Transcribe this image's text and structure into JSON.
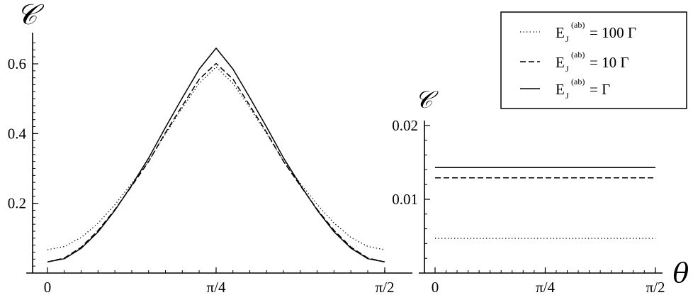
{
  "chart_data": [
    {
      "type": "line",
      "panel": "left",
      "ylabel": "𝒞",
      "xlabel": "",
      "xlim": [
        0,
        1.5708
      ],
      "ylim": [
        0,
        0.66
      ],
      "x_ticks": [
        {
          "value": 0,
          "label": "0"
        },
        {
          "value": 0.7854,
          "label": "π/4"
        },
        {
          "value": 1.5708,
          "label": "π/2"
        }
      ],
      "y_ticks": [
        {
          "value": 0.2,
          "label": "0.2"
        },
        {
          "value": 0.4,
          "label": "0.4"
        },
        {
          "value": 0.6,
          "label": "0.6"
        }
      ],
      "series": [
        {
          "name": "100",
          "style": "dotted",
          "x": [
            0,
            0.0785,
            0.1571,
            0.2356,
            0.3142,
            0.3927,
            0.4712,
            0.5498,
            0.6283,
            0.7069,
            0.7854,
            0.8639,
            0.9425,
            1.021,
            1.0996,
            1.1781,
            1.2566,
            1.3352,
            1.4137,
            1.4923,
            1.5708
          ],
          "y": [
            0.067,
            0.076,
            0.102,
            0.143,
            0.196,
            0.257,
            0.321,
            0.399,
            0.474,
            0.544,
            0.591,
            0.544,
            0.474,
            0.399,
            0.321,
            0.257,
            0.196,
            0.143,
            0.102,
            0.076,
            0.067
          ]
        },
        {
          "name": "10",
          "style": "dashed",
          "x": [
            0,
            0.0785,
            0.1571,
            0.2356,
            0.3142,
            0.3927,
            0.4712,
            0.5498,
            0.6283,
            0.7069,
            0.7854,
            0.8639,
            0.9425,
            1.021,
            1.0996,
            1.1781,
            1.2566,
            1.3352,
            1.4137,
            1.4923,
            1.5708
          ],
          "y": [
            0.032,
            0.043,
            0.074,
            0.122,
            0.182,
            0.25,
            0.32,
            0.403,
            0.48,
            0.556,
            0.601,
            0.556,
            0.48,
            0.403,
            0.32,
            0.25,
            0.182,
            0.122,
            0.074,
            0.043,
            0.032
          ]
        },
        {
          "name": "Γ",
          "style": "solid",
          "x": [
            0,
            0.0785,
            0.1571,
            0.2356,
            0.3142,
            0.3927,
            0.4712,
            0.5498,
            0.6283,
            0.7069,
            0.7854,
            0.8639,
            0.9425,
            1.021,
            1.0996,
            1.1781,
            1.2566,
            1.3352,
            1.4137,
            1.4923,
            1.5708
          ],
          "y": [
            0.032,
            0.041,
            0.071,
            0.118,
            0.18,
            0.252,
            0.33,
            0.418,
            0.503,
            0.585,
            0.645,
            0.585,
            0.503,
            0.418,
            0.33,
            0.252,
            0.18,
            0.118,
            0.071,
            0.041,
            0.032
          ]
        }
      ]
    },
    {
      "type": "line",
      "panel": "right",
      "ylabel": "𝒞",
      "xlabel": "θ",
      "xlim": [
        0,
        1.5708
      ],
      "ylim": [
        0,
        0.02
      ],
      "x_ticks": [
        {
          "value": 0,
          "label": "0"
        },
        {
          "value": 0.7854,
          "label": "π/4"
        },
        {
          "value": 1.5708,
          "label": "π/2"
        }
      ],
      "y_ticks": [
        {
          "value": 0.01,
          "label": "0.01"
        },
        {
          "value": 0.02,
          "label": "0.02"
        }
      ],
      "series": [
        {
          "name": "100",
          "style": "dotted",
          "x": [
            0,
            1.5708
          ],
          "y": [
            0.0047,
            0.0047
          ]
        },
        {
          "name": "10",
          "style": "dashed",
          "x": [
            0,
            1.5708
          ],
          "y": [
            0.0129,
            0.0129
          ]
        },
        {
          "name": "Γ",
          "style": "solid",
          "x": [
            0,
            1.5708
          ],
          "y": [
            0.0143,
            0.0143
          ]
        }
      ]
    }
  ],
  "legend": {
    "placement": "top-right",
    "symbol_main": "E",
    "symbol_sub": "J",
    "symbol_sup": "(ab)",
    "entries": [
      {
        "style": "dotted",
        "text": "= 100 Γ"
      },
      {
        "style": "dashed",
        "text": "= 10 Γ"
      },
      {
        "style": "solid",
        "text": "= Γ"
      }
    ]
  }
}
